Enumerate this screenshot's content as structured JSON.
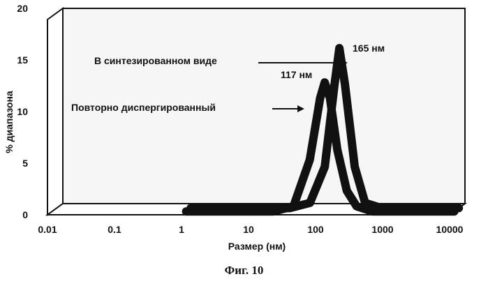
{
  "caption": "Фиг. 10",
  "chart_data": {
    "type": "line",
    "title": "",
    "xlabel": "Размер (нм)",
    "ylabel": "% диапазона",
    "x_scale": "log",
    "xlim": [
      0.01,
      10000
    ],
    "ylim": [
      0,
      20
    ],
    "x_ticks": [
      "0.01",
      "0.1",
      "1",
      "10",
      "100",
      "1000",
      "10000"
    ],
    "x_tick_values": [
      0.01,
      0.1,
      1,
      10,
      100,
      1000,
      10000
    ],
    "y_ticks": [
      "0",
      "5",
      "10",
      "15",
      "20"
    ],
    "y_tick_values": [
      0,
      5,
      10,
      15,
      20
    ],
    "grid": true,
    "series": [
      {
        "name": "В синтезированном виде",
        "peak_label": "165 нм",
        "x": [
          1,
          10,
          30,
          60,
          100,
          140,
          165,
          200,
          280,
          400,
          700,
          1000,
          10000
        ],
        "y": [
          0,
          0,
          0,
          0.5,
          4,
          12,
          15.5,
          12,
          4,
          0.5,
          0,
          0,
          0
        ]
      },
      {
        "name": "Повторно диспергированный",
        "peak_label": "117 нм",
        "x": [
          1,
          10,
          20,
          40,
          70,
          100,
          117,
          140,
          180,
          250,
          350,
          600,
          1000,
          10000
        ],
        "y": [
          0,
          0,
          0,
          0.5,
          5,
          11,
          12.5,
          11,
          6,
          2,
          0.5,
          0,
          0,
          0
        ]
      }
    ]
  }
}
